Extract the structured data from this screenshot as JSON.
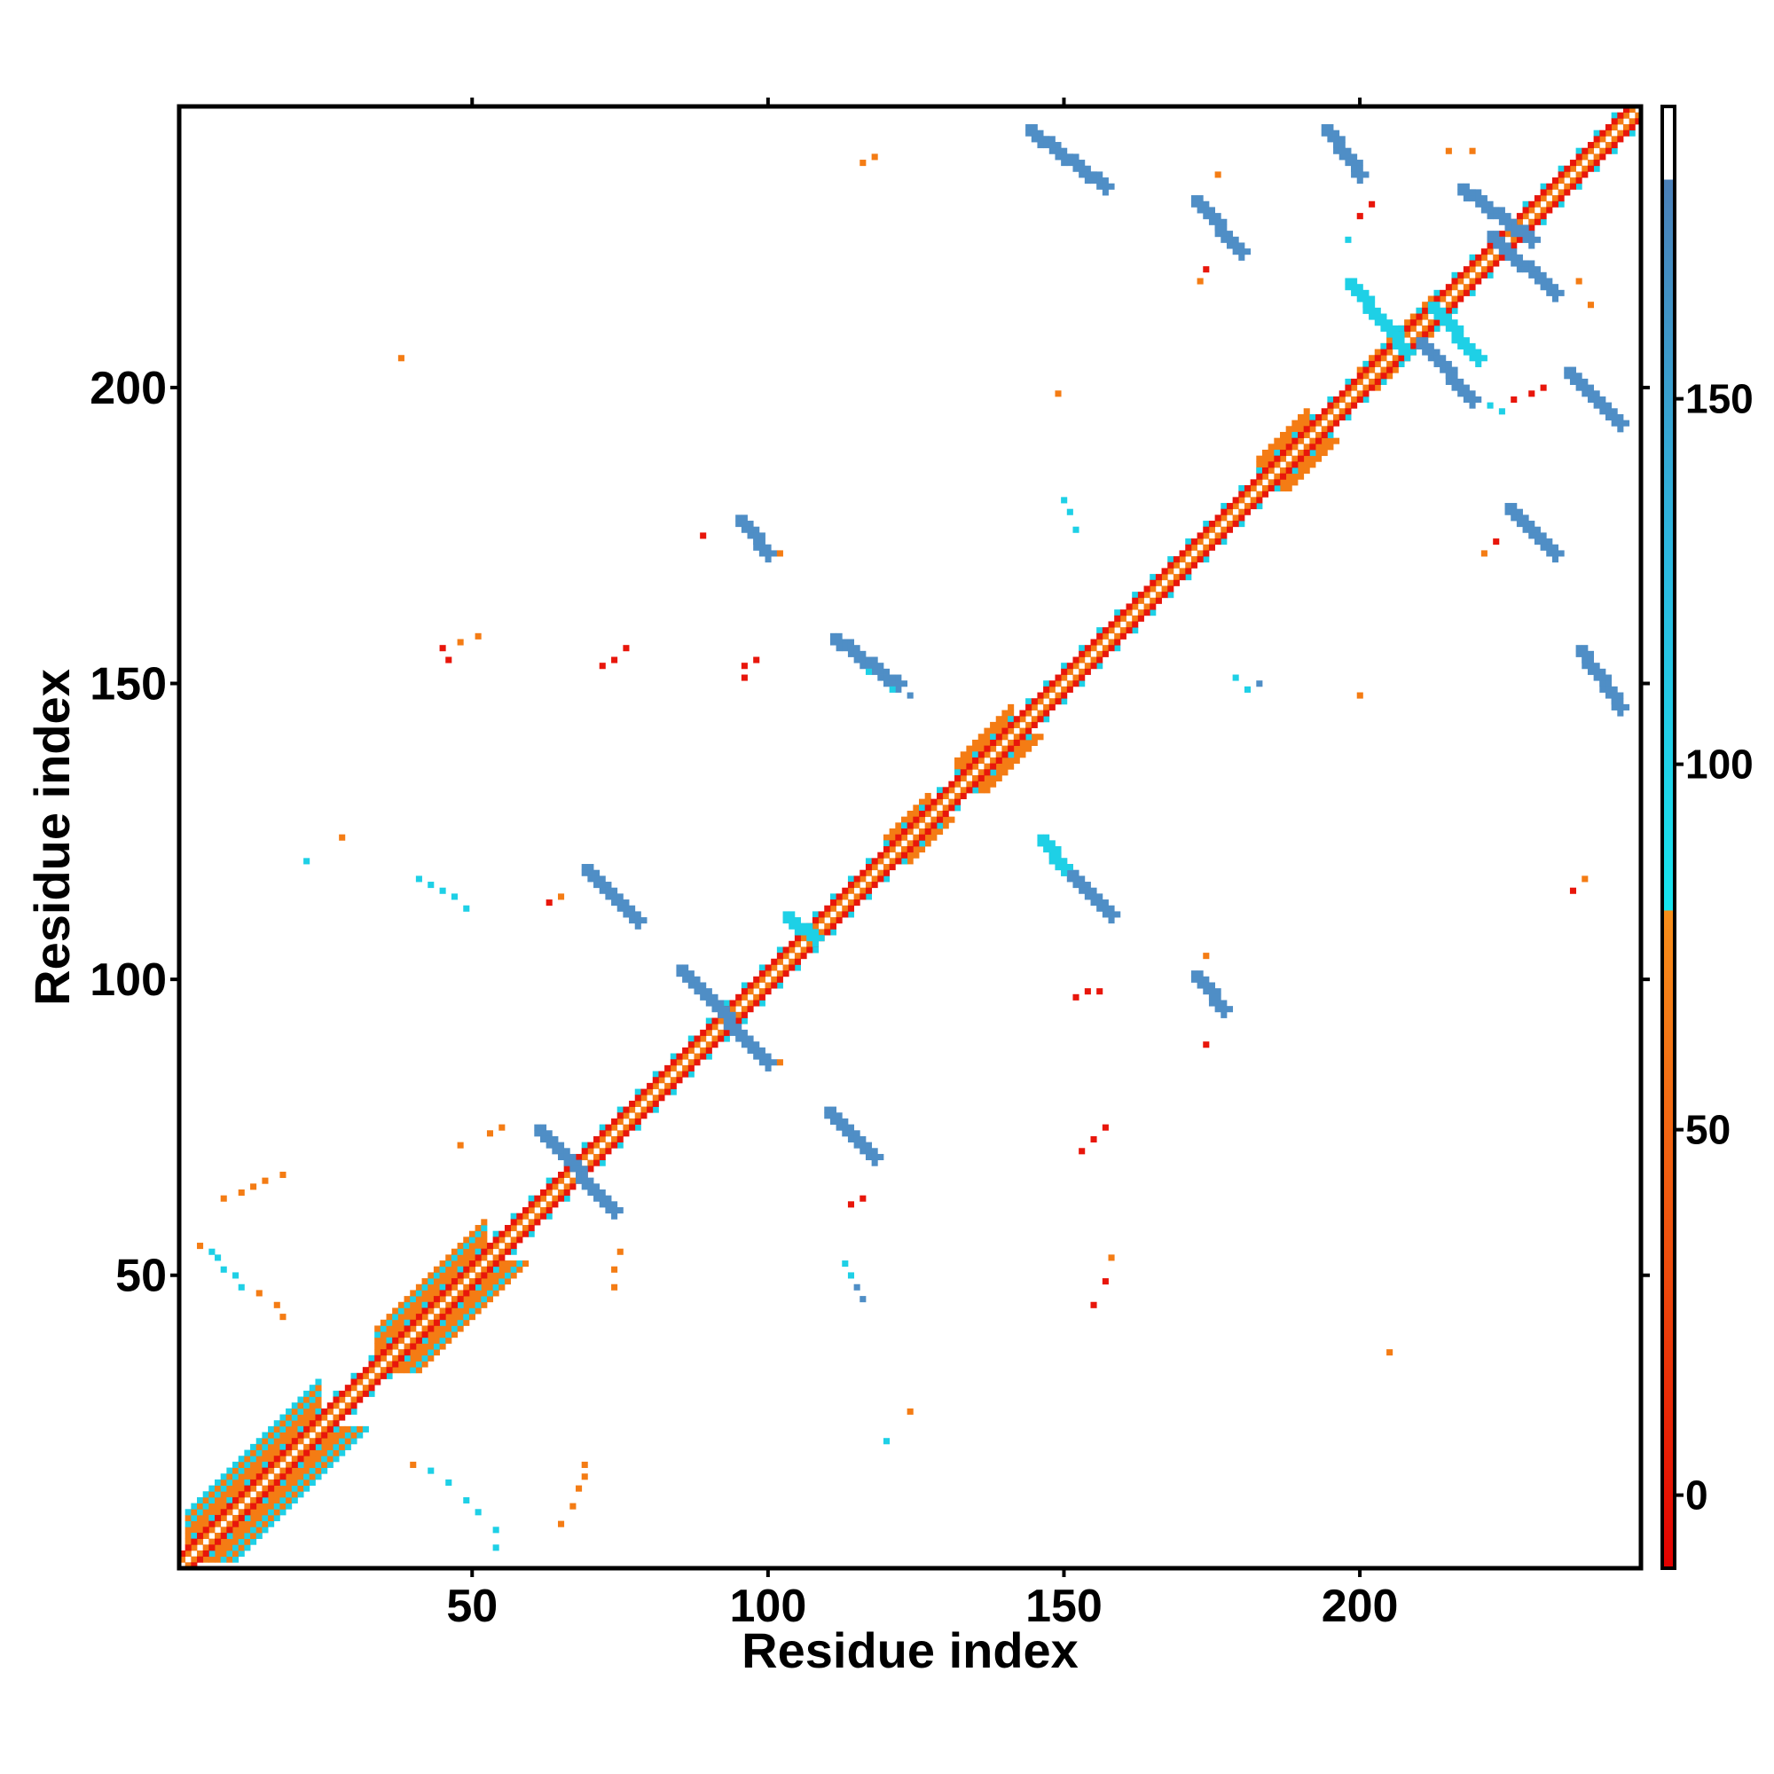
{
  "chart_data": {
    "type": "heatmap",
    "title": "",
    "xlabel": "Residue index",
    "ylabel": "Residue index",
    "xlim": [
      1,
      247
    ],
    "ylim": [
      1,
      247
    ],
    "x_ticks": [
      50,
      100,
      150,
      200
    ],
    "y_ticks": [
      50,
      100,
      150,
      200
    ],
    "colorbar": {
      "range": [
        -10,
        190
      ],
      "ticks": [
        0,
        50,
        100,
        150
      ],
      "bands": [
        {
          "from": -10,
          "to": 30,
          "color": "#e8160b"
        },
        {
          "from": 30,
          "to": 80,
          "color": "#f47c14"
        },
        {
          "from": 80,
          "to": 180,
          "color": "#1ed0e6"
        },
        {
          "from": 180,
          "to": 190,
          "color": "#ffffff"
        }
      ],
      "gradient": [
        {
          "value": -10,
          "color": "#e30000"
        },
        {
          "value": 30,
          "color": "#ee4a0c"
        },
        {
          "value": 80,
          "color": "#f78e1a"
        },
        {
          "value": 80.01,
          "color": "#16e4ee"
        },
        {
          "value": 130,
          "color": "#2cb6df"
        },
        {
          "value": 180,
          "color": "#4a7fb8"
        },
        {
          "value": 180.01,
          "color": "#ffffff"
        },
        {
          "value": 190,
          "color": "#ffffff"
        }
      ]
    },
    "color_classes": {
      "red": "#e8160b",
      "orange": "#f47c14",
      "cyan": "#1ed0e6",
      "steel": "#4f8ec6"
    },
    "diagonal": {
      "bands": [
        {
          "x_start": 1,
          "x_end": 247,
          "offset": 0,
          "class": "white",
          "value": 190
        },
        {
          "x_start": 1,
          "x_end": 247,
          "offset": 1,
          "class": "orange",
          "value": 60
        },
        {
          "x_start": 1,
          "x_end": 247,
          "offset": -1,
          "class": "orange",
          "value": 60
        },
        {
          "x_start": 1,
          "x_end": 247,
          "offset": 2,
          "class": "red",
          "value": 10
        },
        {
          "x_start": 1,
          "x_end": 247,
          "offset": -2,
          "class": "red",
          "value": 10
        }
      ],
      "helix_regions": [
        {
          "start": 2,
          "end": 24,
          "width": 8
        },
        {
          "start": 34,
          "end": 52,
          "width": 7
        },
        {
          "start": 120,
          "end": 127,
          "width": 4
        },
        {
          "start": 132,
          "end": 141,
          "width": 5
        },
        {
          "start": 183,
          "end": 191,
          "width": 5
        },
        {
          "start": 200,
          "end": 212,
          "width": 3
        }
      ]
    },
    "strand_segments": [
      {
        "x0": 61,
        "y0": 75,
        "x1": 74,
        "y1": 61,
        "class": "steel",
        "value": 160
      },
      {
        "x0": 69,
        "y0": 119,
        "x1": 78,
        "y1": 110,
        "class": "steel",
        "value": 160
      },
      {
        "x0": 85,
        "y0": 102,
        "x1": 100,
        "y1": 86,
        "class": "steel",
        "value": 160
      },
      {
        "x0": 95,
        "y0": 178,
        "x1": 100,
        "y1": 172,
        "class": "steel",
        "value": 160
      },
      {
        "x0": 110,
        "y0": 78,
        "x1": 118,
        "y1": 70,
        "class": "steel",
        "value": 160
      },
      {
        "x0": 111,
        "y0": 158,
        "x1": 122,
        "y1": 150,
        "class": "steel",
        "value": 160
      },
      {
        "x0": 148,
        "y0": 121,
        "x1": 158,
        "y1": 111,
        "class": "steel",
        "value": 160
      },
      {
        "x0": 144,
        "y0": 244,
        "x1": 157,
        "y1": 234,
        "class": "steel",
        "value": 160
      },
      {
        "x0": 172,
        "y0": 232,
        "x1": 180,
        "y1": 223,
        "class": "steel",
        "value": 160
      },
      {
        "x0": 172,
        "y0": 101,
        "x1": 177,
        "y1": 95,
        "class": "steel",
        "value": 160
      },
      {
        "x0": 194,
        "y0": 244,
        "x1": 200,
        "y1": 236,
        "class": "steel",
        "value": 160
      },
      {
        "x0": 217,
        "y0": 234,
        "x1": 229,
        "y1": 225,
        "class": "steel",
        "value": 160
      },
      {
        "x0": 222,
        "y0": 226,
        "x1": 233,
        "y1": 216,
        "class": "steel",
        "value": 160
      },
      {
        "x0": 210,
        "y0": 208,
        "x1": 219,
        "y1": 198,
        "class": "steel",
        "value": 160
      },
      {
        "x0": 235,
        "y0": 203,
        "x1": 244,
        "y1": 194,
        "class": "steel",
        "value": 160
      },
      {
        "x0": 225,
        "y0": 180,
        "x1": 233,
        "y1": 172,
        "class": "steel",
        "value": 160
      },
      {
        "x0": 237,
        "y0": 156,
        "x1": 244,
        "y1": 146,
        "class": "steel",
        "value": 160
      },
      {
        "x0": 198,
        "y0": 218,
        "x1": 208,
        "y1": 206,
        "class": "cyan",
        "value": 100
      },
      {
        "x0": 146,
        "y0": 124,
        "x1": 150,
        "y1": 119,
        "class": "cyan",
        "value": 100
      },
      {
        "x0": 212,
        "y0": 214,
        "x1": 220,
        "y1": 205,
        "class": "cyan",
        "value": 100
      },
      {
        "x0": 103,
        "y0": 111,
        "x1": 108,
        "y1": 107,
        "class": "cyan",
        "value": 100
      }
    ],
    "scatter_points": [
      {
        "x": 4,
        "y": 55,
        "class": "orange",
        "value": 60
      },
      {
        "x": 6,
        "y": 54,
        "class": "cyan",
        "value": 100
      },
      {
        "x": 7,
        "y": 53,
        "class": "cyan",
        "value": 100
      },
      {
        "x": 8,
        "y": 51,
        "class": "cyan",
        "value": 100
      },
      {
        "x": 10,
        "y": 50,
        "class": "cyan",
        "value": 100
      },
      {
        "x": 11,
        "y": 48,
        "class": "cyan",
        "value": 100
      },
      {
        "x": 14,
        "y": 47,
        "class": "orange",
        "value": 60
      },
      {
        "x": 17,
        "y": 45,
        "class": "orange",
        "value": 60
      },
      {
        "x": 18,
        "y": 43,
        "class": "orange",
        "value": 60
      },
      {
        "x": 8,
        "y": 63,
        "class": "orange",
        "value": 60
      },
      {
        "x": 11,
        "y": 64,
        "class": "orange",
        "value": 60
      },
      {
        "x": 13,
        "y": 65,
        "class": "orange",
        "value": 60
      },
      {
        "x": 15,
        "y": 66,
        "class": "orange",
        "value": 60
      },
      {
        "x": 18,
        "y": 67,
        "class": "orange",
        "value": 60
      },
      {
        "x": 22,
        "y": 120,
        "class": "cyan",
        "value": 100
      },
      {
        "x": 28,
        "y": 124,
        "class": "orange",
        "value": 60
      },
      {
        "x": 38,
        "y": 205,
        "class": "orange",
        "value": 60
      },
      {
        "x": 41,
        "y": 117,
        "class": "cyan",
        "value": 100
      },
      {
        "x": 43,
        "y": 116,
        "class": "cyan",
        "value": 100
      },
      {
        "x": 45,
        "y": 115,
        "class": "cyan",
        "value": 100
      },
      {
        "x": 47,
        "y": 114,
        "class": "cyan",
        "value": 100
      },
      {
        "x": 49,
        "y": 112,
        "class": "cyan",
        "value": 100
      },
      {
        "x": 45,
        "y": 156,
        "class": "red",
        "value": 10
      },
      {
        "x": 46,
        "y": 154,
        "class": "red",
        "value": 10
      },
      {
        "x": 48,
        "y": 157,
        "class": "orange",
        "value": 60
      },
      {
        "x": 51,
        "y": 158,
        "class": "orange",
        "value": 60
      },
      {
        "x": 55,
        "y": 75,
        "class": "orange",
        "value": 60
      },
      {
        "x": 53,
        "y": 74,
        "class": "orange",
        "value": 60
      },
      {
        "x": 48,
        "y": 72,
        "class": "orange",
        "value": 60
      },
      {
        "x": 40,
        "y": 18,
        "class": "orange",
        "value": 60
      },
      {
        "x": 43,
        "y": 17,
        "class": "cyan",
        "value": 100
      },
      {
        "x": 46,
        "y": 15,
        "class": "cyan",
        "value": 100
      },
      {
        "x": 49,
        "y": 12,
        "class": "cyan",
        "value": 100
      },
      {
        "x": 51,
        "y": 10,
        "class": "cyan",
        "value": 100
      },
      {
        "x": 54,
        "y": 7,
        "class": "cyan",
        "value": 100
      },
      {
        "x": 54,
        "y": 4,
        "class": "cyan",
        "value": 100
      },
      {
        "x": 65,
        "y": 8,
        "class": "orange",
        "value": 60
      },
      {
        "x": 67,
        "y": 11,
        "class": "orange",
        "value": 60
      },
      {
        "x": 68,
        "y": 14,
        "class": "orange",
        "value": 60
      },
      {
        "x": 69,
        "y": 16,
        "class": "orange",
        "value": 60
      },
      {
        "x": 69,
        "y": 18,
        "class": "orange",
        "value": 60
      },
      {
        "x": 74,
        "y": 48,
        "class": "orange",
        "value": 60
      },
      {
        "x": 74,
        "y": 51,
        "class": "orange",
        "value": 60
      },
      {
        "x": 75,
        "y": 54,
        "class": "orange",
        "value": 60
      },
      {
        "x": 63,
        "y": 113,
        "class": "red",
        "value": 10
      },
      {
        "x": 65,
        "y": 114,
        "class": "orange",
        "value": 60
      },
      {
        "x": 72,
        "y": 153,
        "class": "red",
        "value": 10
      },
      {
        "x": 74,
        "y": 154,
        "class": "red",
        "value": 10
      },
      {
        "x": 76,
        "y": 156,
        "class": "red",
        "value": 10
      },
      {
        "x": 89,
        "y": 175,
        "class": "red",
        "value": 10
      },
      {
        "x": 96,
        "y": 151,
        "class": "red",
        "value": 10
      },
      {
        "x": 96,
        "y": 153,
        "class": "red",
        "value": 10
      },
      {
        "x": 98,
        "y": 154,
        "class": "red",
        "value": 10
      },
      {
        "x": 102,
        "y": 172,
        "class": "orange",
        "value": 60
      },
      {
        "x": 102,
        "y": 86,
        "class": "orange",
        "value": 60
      },
      {
        "x": 114,
        "y": 62,
        "class": "red",
        "value": 10
      },
      {
        "x": 116,
        "y": 63,
        "class": "red",
        "value": 10
      },
      {
        "x": 113,
        "y": 52,
        "class": "cyan",
        "value": 100
      },
      {
        "x": 114,
        "y": 50,
        "class": "cyan",
        "value": 100
      },
      {
        "x": 115,
        "y": 48,
        "class": "steel",
        "value": 160
      },
      {
        "x": 116,
        "y": 46,
        "class": "steel",
        "value": 160
      },
      {
        "x": 120,
        "y": 22,
        "class": "cyan",
        "value": 100
      },
      {
        "x": 124,
        "y": 27,
        "class": "orange",
        "value": 60
      },
      {
        "x": 116,
        "y": 238,
        "class": "orange",
        "value": 60
      },
      {
        "x": 118,
        "y": 239,
        "class": "orange",
        "value": 60
      },
      {
        "x": 117,
        "y": 152,
        "class": "cyan",
        "value": 100
      },
      {
        "x": 121,
        "y": 149,
        "class": "cyan",
        "value": 100
      },
      {
        "x": 124,
        "y": 148,
        "class": "steel",
        "value": 160
      },
      {
        "x": 149,
        "y": 199,
        "class": "orange",
        "value": 60
      },
      {
        "x": 150,
        "y": 181,
        "class": "cyan",
        "value": 100
      },
      {
        "x": 151,
        "y": 179,
        "class": "cyan",
        "value": 100
      },
      {
        "x": 152,
        "y": 176,
        "class": "cyan",
        "value": 100
      },
      {
        "x": 152,
        "y": 97,
        "class": "red",
        "value": 10
      },
      {
        "x": 154,
        "y": 98,
        "class": "red",
        "value": 10
      },
      {
        "x": 156,
        "y": 98,
        "class": "red",
        "value": 10
      },
      {
        "x": 153,
        "y": 71,
        "class": "red",
        "value": 10
      },
      {
        "x": 155,
        "y": 73,
        "class": "red",
        "value": 10
      },
      {
        "x": 157,
        "y": 75,
        "class": "red",
        "value": 10
      },
      {
        "x": 155,
        "y": 45,
        "class": "red",
        "value": 10
      },
      {
        "x": 157,
        "y": 49,
        "class": "red",
        "value": 10
      },
      {
        "x": 158,
        "y": 53,
        "class": "orange",
        "value": 60
      },
      {
        "x": 174,
        "y": 89,
        "class": "red",
        "value": 10
      },
      {
        "x": 174,
        "y": 104,
        "class": "orange",
        "value": 60
      },
      {
        "x": 176,
        "y": 236,
        "class": "orange",
        "value": 60
      },
      {
        "x": 174,
        "y": 220,
        "class": "red",
        "value": 10
      },
      {
        "x": 173,
        "y": 218,
        "class": "orange",
        "value": 60
      },
      {
        "x": 179,
        "y": 151,
        "class": "cyan",
        "value": 100
      },
      {
        "x": 181,
        "y": 149,
        "class": "cyan",
        "value": 100
      },
      {
        "x": 183,
        "y": 150,
        "class": "steel",
        "value": 160
      },
      {
        "x": 200,
        "y": 148,
        "class": "orange",
        "value": 60
      },
      {
        "x": 200,
        "y": 229,
        "class": "red",
        "value": 10
      },
      {
        "x": 202,
        "y": 231,
        "class": "red",
        "value": 10
      },
      {
        "x": 198,
        "y": 225,
        "class": "cyan",
        "value": 100
      },
      {
        "x": 205,
        "y": 37,
        "class": "orange",
        "value": 60
      },
      {
        "x": 215,
        "y": 240,
        "class": "orange",
        "value": 60
      },
      {
        "x": 219,
        "y": 240,
        "class": "orange",
        "value": 60
      },
      {
        "x": 221,
        "y": 172,
        "class": "orange",
        "value": 60
      },
      {
        "x": 223,
        "y": 174,
        "class": "red",
        "value": 10
      },
      {
        "x": 226,
        "y": 198,
        "class": "red",
        "value": 10
      },
      {
        "x": 229,
        "y": 199,
        "class": "red",
        "value": 10
      },
      {
        "x": 231,
        "y": 200,
        "class": "red",
        "value": 10
      },
      {
        "x": 222,
        "y": 197,
        "class": "cyan",
        "value": 100
      },
      {
        "x": 224,
        "y": 196,
        "class": "cyan",
        "value": 100
      },
      {
        "x": 237,
        "y": 218,
        "class": "orange",
        "value": 60
      },
      {
        "x": 239,
        "y": 214,
        "class": "orange",
        "value": 60
      },
      {
        "x": 236,
        "y": 115,
        "class": "red",
        "value": 10
      },
      {
        "x": 238,
        "y": 117,
        "class": "orange",
        "value": 60
      }
    ]
  }
}
